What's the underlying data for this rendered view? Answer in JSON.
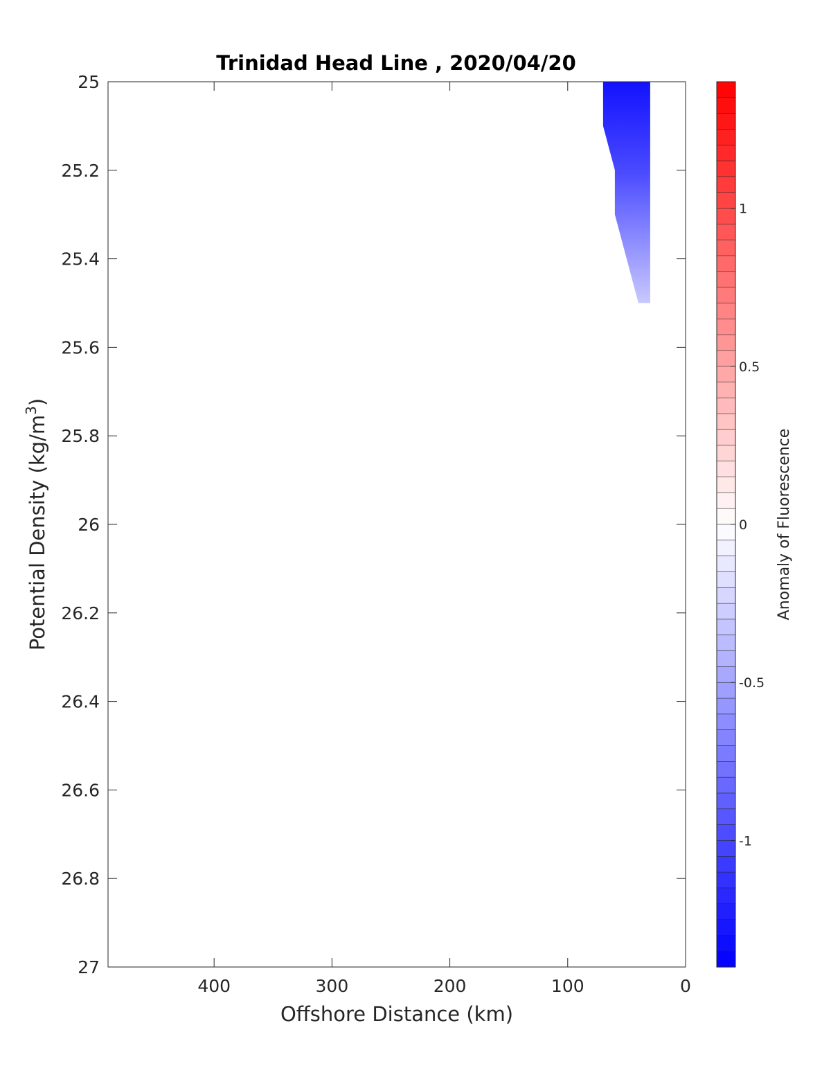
{
  "chart_data": {
    "type": "heatmap",
    "title": "Trinidad Head Line , 2020/04/20",
    "xlabel": "Offshore Distance (km)",
    "ylabel_main": "Potential Density (kg/m",
    "ylabel_sup": "3",
    "ylabel_close": ")",
    "xlim": [
      490,
      0
    ],
    "x_reversed": true,
    "ylim": [
      25,
      27
    ],
    "y_reversed": true,
    "xticks": [
      400,
      300,
      200,
      100,
      0
    ],
    "xtick_labels": [
      "400",
      "300",
      "200",
      "100",
      "0"
    ],
    "yticks": [
      25,
      25.2,
      25.4,
      25.6,
      25.8,
      26,
      26.2,
      26.4,
      26.6,
      26.8,
      27
    ],
    "ytick_labels": [
      "25",
      "25.2",
      "25.4",
      "25.6",
      "25.8",
      "26",
      "26.2",
      "26.4",
      "26.6",
      "26.8",
      "27"
    ],
    "grid": false,
    "contour_region": {
      "boundary": [
        {
          "x": 70,
          "y": 25.0
        },
        {
          "x": 30,
          "y": 25.0
        },
        {
          "x": 30,
          "y": 25.5
        },
        {
          "x": 40,
          "y": 25.5
        },
        {
          "x": 60,
          "y": 25.3
        },
        {
          "x": 60,
          "y": 25.2
        },
        {
          "x": 70,
          "y": 25.1
        }
      ],
      "gradient_stops": [
        {
          "y": 25.0,
          "value": -1.3
        },
        {
          "y": 25.2,
          "value": -1.0
        },
        {
          "y": 25.5,
          "value": -0.3
        }
      ]
    },
    "colorbar": {
      "label": "Anomaly of Fluorescence",
      "clim": [
        -1.4,
        1.4
      ],
      "levels": 56,
      "ticks": [
        1,
        0.5,
        0,
        -0.5,
        -1
      ],
      "tick_labels": [
        "1",
        "0.5",
        "0",
        "-0.5",
        "-1"
      ],
      "colormap": {
        "low": "#0000ff",
        "mid": "#ffffff",
        "high": "#ff0000"
      }
    }
  }
}
